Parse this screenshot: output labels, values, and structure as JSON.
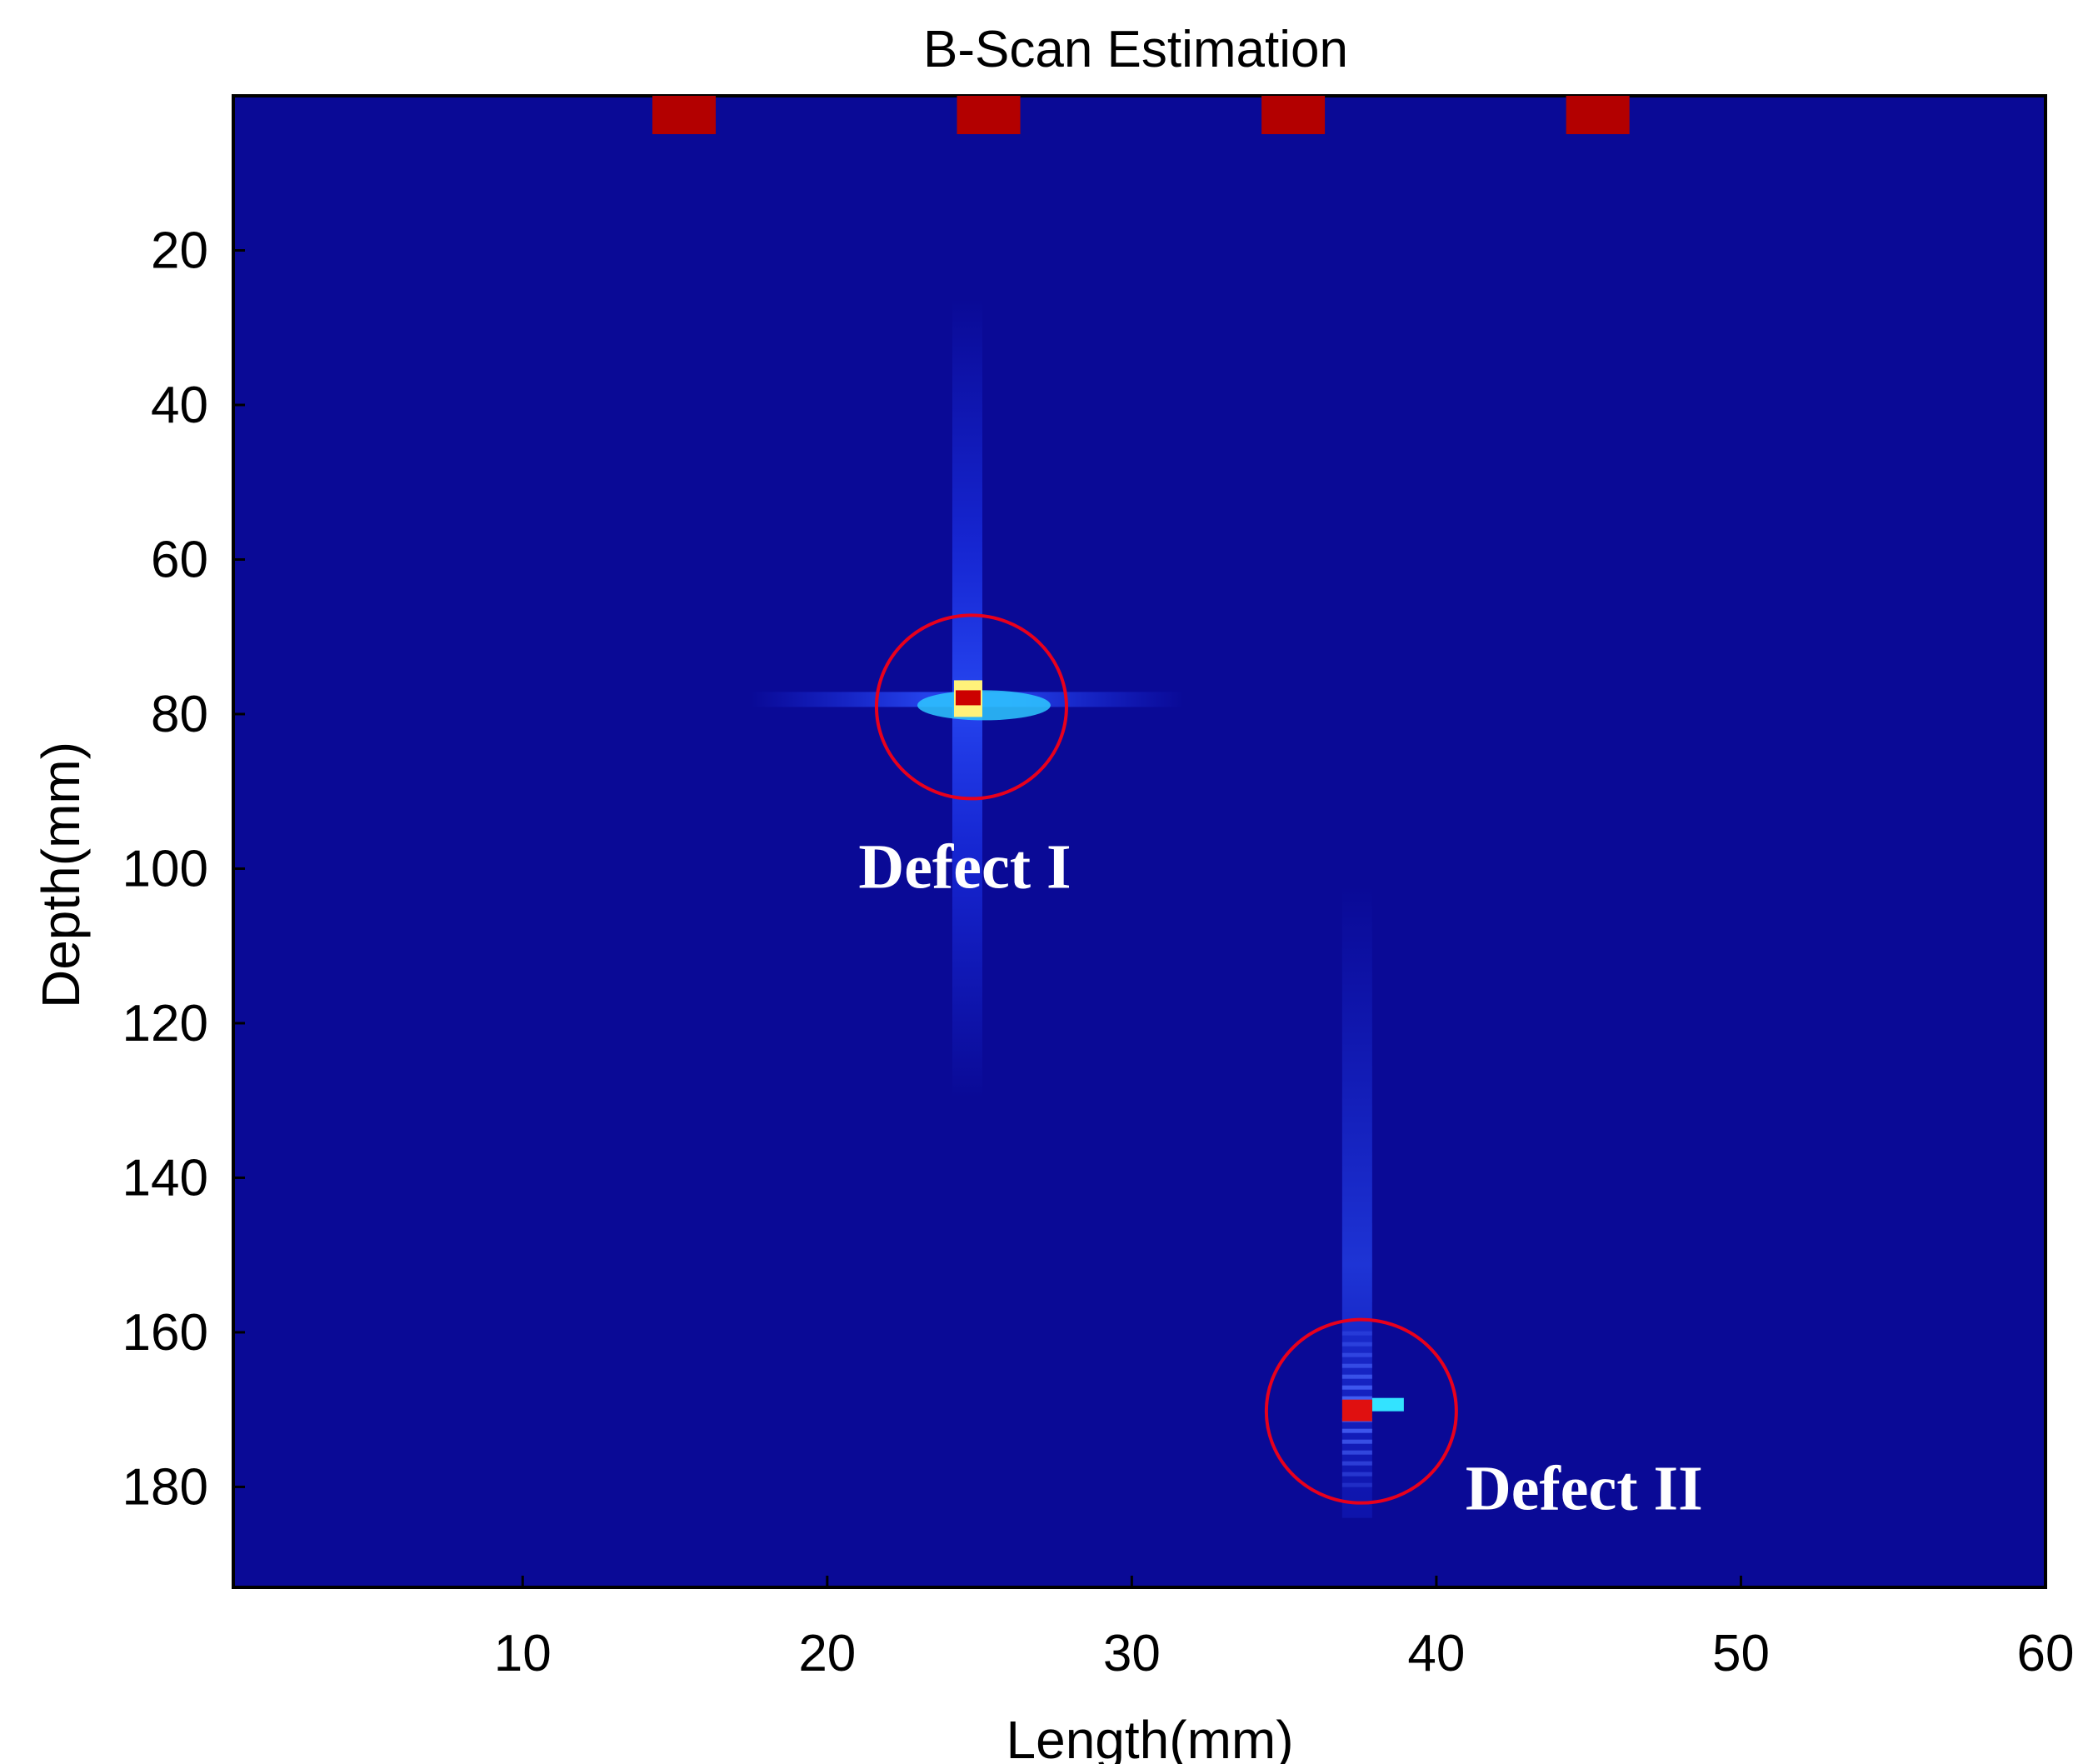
{
  "chart_data": {
    "type": "heatmap",
    "title": "B-Scan Estimation",
    "xlabel": "Length(mm)",
    "ylabel": "Depth(mm)",
    "xlim": [
      0.5,
      60
    ],
    "ylim": [
      0,
      193
    ],
    "y_inverted": true,
    "xticks": [
      10,
      20,
      30,
      40,
      50,
      60
    ],
    "yticks": [
      20,
      40,
      60,
      80,
      100,
      120,
      140,
      160,
      180
    ],
    "background_color": "#0a0a96",
    "grid": false,
    "surface_markers": {
      "x": [
        15.3,
        25.3,
        35.3,
        45.3
      ],
      "color": "#b30000"
    },
    "defects": [
      {
        "label": "Defect I",
        "x": 24.6,
        "y": 78,
        "peak_color": "#cc0000",
        "circle_color": "#e8001c"
      },
      {
        "label": "Defect II",
        "x": 37.4,
        "y": 170,
        "peak_color": "#e01010",
        "circle_color": "#e8001c"
      }
    ]
  }
}
